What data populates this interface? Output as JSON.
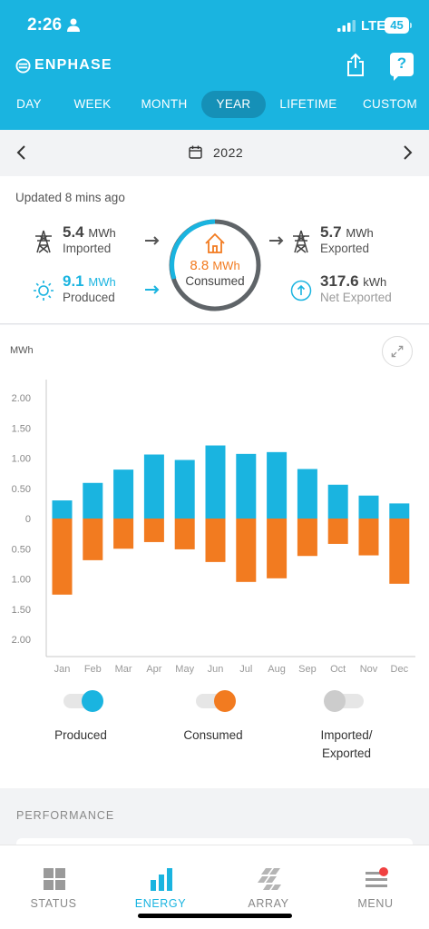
{
  "status_bar": {
    "time": "2:26",
    "network": "LTE",
    "battery": "45"
  },
  "header": {
    "brand": "ENPHASE",
    "icons": [
      "share-icon",
      "help-icon"
    ],
    "help_glyph": "?"
  },
  "tabs": [
    {
      "label": "DAY",
      "active": false
    },
    {
      "label": "WEEK",
      "active": false
    },
    {
      "label": "MONTH",
      "active": false
    },
    {
      "label": "YEAR",
      "active": true
    },
    {
      "label": "LIFETIME",
      "active": false
    },
    {
      "label": "CUSTOM",
      "active": false
    }
  ],
  "date_nav": {
    "label": "2022"
  },
  "summary": {
    "updated": "Updated 8 mins ago",
    "imported": {
      "value": "5.4",
      "unit": "MWh",
      "label": "Imported"
    },
    "produced": {
      "value": "9.1",
      "unit": "MWh",
      "label": "Produced"
    },
    "consumed": {
      "value": "8.8",
      "unit": "MWh",
      "label": "Consumed"
    },
    "exported": {
      "value": "5.7",
      "unit": "MWh",
      "label": "Exported"
    },
    "net_exported": {
      "value": "317.6",
      "unit": "kWh",
      "label": "Net Exported"
    }
  },
  "chart_data": {
    "type": "bar",
    "ylabel": "MWh",
    "ylim": [
      -2.0,
      2.0
    ],
    "yticks": [
      "2.00",
      "1.50",
      "1.00",
      "0.50",
      "0",
      "0.50",
      "1.00",
      "1.50",
      "2.00"
    ],
    "categories": [
      "Jan",
      "Feb",
      "Mar",
      "Apr",
      "May",
      "Jun",
      "Jul",
      "Aug",
      "Sep",
      "Oct",
      "Nov",
      "Dec"
    ],
    "series": [
      {
        "name": "Produced",
        "color": "#1ab4e0",
        "values": [
          0.3,
          0.59,
          0.81,
          1.06,
          0.97,
          1.21,
          1.07,
          1.1,
          0.82,
          0.56,
          0.38,
          0.25
        ]
      },
      {
        "name": "Consumed",
        "color": "#f27b20",
        "values": [
          -1.26,
          -0.69,
          -0.5,
          -0.39,
          -0.51,
          -0.72,
          -1.05,
          -0.99,
          -0.62,
          -0.42,
          -0.61,
          -1.08
        ]
      }
    ],
    "grid": false
  },
  "legend": [
    {
      "label": "Produced",
      "color": "#1ab4e0",
      "on": true
    },
    {
      "label": "Consumed",
      "color": "#f27b20",
      "on": true
    },
    {
      "label": "Imported/ Exported",
      "color": "#cccccc",
      "on": false
    }
  ],
  "performance": {
    "label": "PERFORMANCE"
  },
  "bottom_nav": [
    {
      "label": "STATUS",
      "icon": "grid-icon",
      "active": false
    },
    {
      "label": "ENERGY",
      "icon": "bar-chart-icon",
      "active": true
    },
    {
      "label": "ARRAY",
      "icon": "solar-panel-icon",
      "active": false
    },
    {
      "label": "MENU",
      "icon": "menu-icon",
      "active": false,
      "badge": true
    }
  ]
}
